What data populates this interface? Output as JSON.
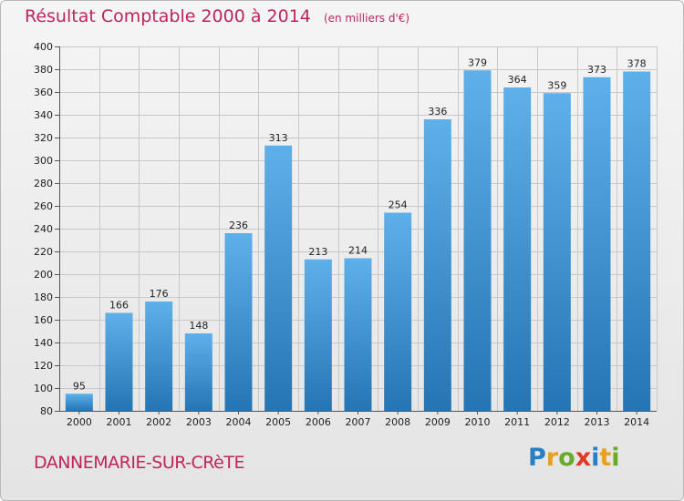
{
  "page": {
    "title": "Résultat Comptable 2000 à 2014",
    "subtitle": "(en milliers d'€)",
    "location": "DANNEMARIE-SUR-CRèTE",
    "logo_text": "Proxiti",
    "logo_letters": [
      {
        "char": "P",
        "color": "#2a7fc4"
      },
      {
        "char": "r",
        "color": "#e8a020"
      },
      {
        "char": "o",
        "color": "#6aaa2a"
      },
      {
        "char": "x",
        "color": "#e03a2a"
      },
      {
        "char": "i",
        "color": "#2a7fc4"
      },
      {
        "char": "t",
        "color": "#e8a020"
      },
      {
        "char": "i",
        "color": "#6aaa2a"
      }
    ]
  },
  "colors": {
    "title": "#c0245c",
    "bar_top": "#5eb0ea",
    "bar_bottom": "#2575b4",
    "grid": "#c8c8c8",
    "axis": "#555555"
  },
  "chart_data": {
    "type": "bar",
    "title": "Résultat Comptable 2000 à 2014",
    "xlabel": "",
    "ylabel": "",
    "categories": [
      "2000",
      "2001",
      "2002",
      "2003",
      "2004",
      "2005",
      "2006",
      "2007",
      "2008",
      "2009",
      "2010",
      "2011",
      "2012",
      "2013",
      "2014"
    ],
    "values": [
      95,
      166,
      176,
      148,
      236,
      313,
      213,
      214,
      254,
      336,
      379,
      364,
      359,
      373,
      378
    ],
    "ylim": [
      80,
      400
    ],
    "yticks": [
      80,
      100,
      120,
      140,
      160,
      180,
      200,
      220,
      240,
      260,
      280,
      300,
      320,
      340,
      360,
      380,
      400
    ],
    "grid": true
  }
}
